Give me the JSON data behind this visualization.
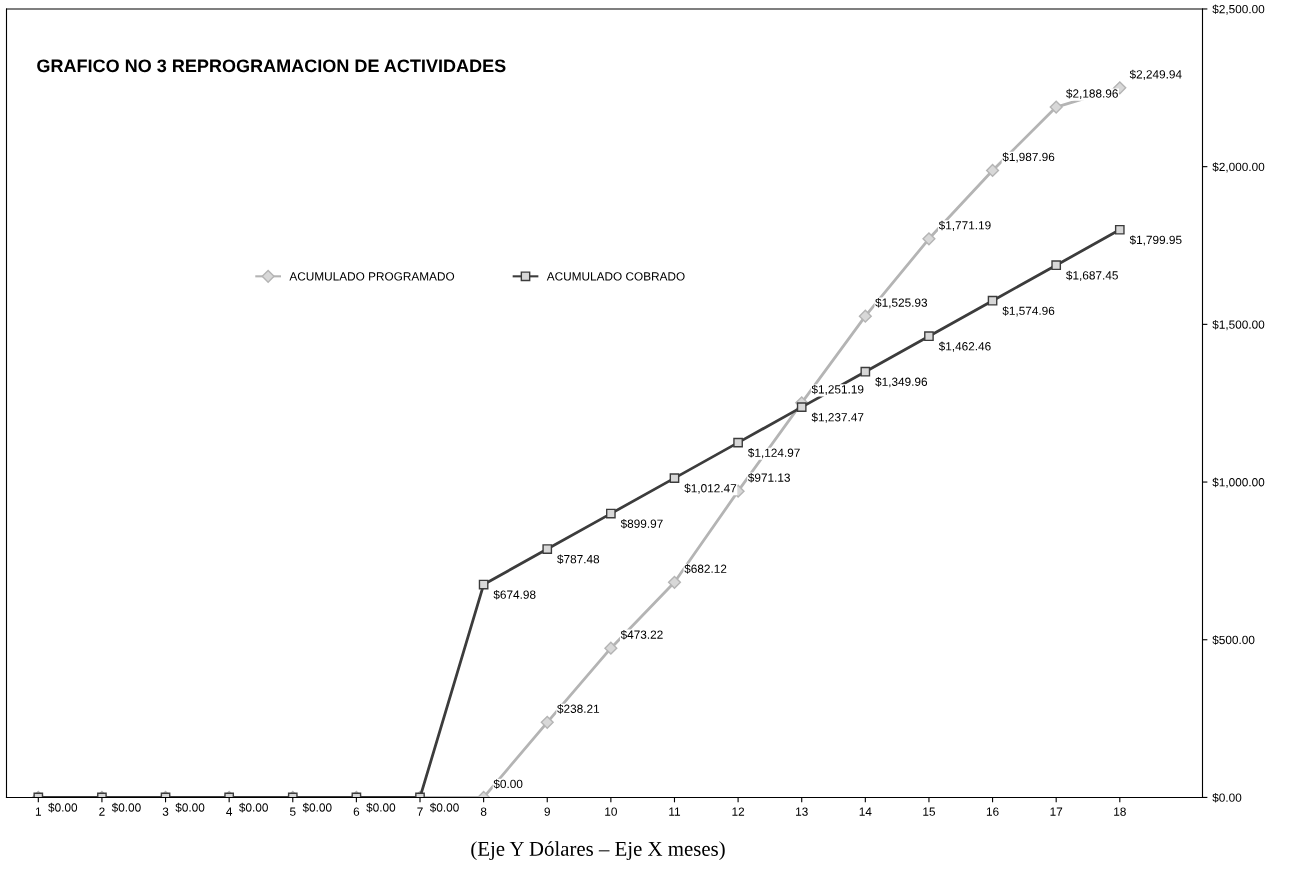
{
  "chart_data": {
    "type": "line",
    "title": "GRAFICO NO 3 REPROGRAMACION DE ACTIVIDADES",
    "categories": [
      "1",
      "2",
      "3",
      "4",
      "5",
      "6",
      "7",
      "8",
      "9",
      "10",
      "11",
      "12",
      "13",
      "14",
      "15",
      "16",
      "17",
      "18"
    ],
    "series": [
      {
        "name": "ACUMULADO PROGRAMADO",
        "color": "#b4b4b4",
        "marker": "diamond",
        "values": [
          0,
          0,
          0,
          0,
          0,
          0,
          0,
          0,
          238.21,
          473.22,
          682.12,
          971.13,
          1251.19,
          1525.93,
          1771.19,
          1987.96,
          2188.96,
          2249.94
        ],
        "value_labels": [
          null,
          null,
          null,
          null,
          null,
          null,
          null,
          "$0.00",
          "$238.21",
          "$473.22",
          "$682.12",
          "$971.13",
          "$1,251.19",
          "$1,525.93",
          "$1,771.19",
          "$1,987.96",
          "$2,188.96",
          "$2,249.94"
        ]
      },
      {
        "name": "ACUMULADO COBRADO",
        "color": "#3c3c3c",
        "marker": "square",
        "values": [
          0,
          0,
          0,
          0,
          0,
          0,
          0,
          674.98,
          787.48,
          899.97,
          1012.47,
          1124.97,
          1237.47,
          1349.96,
          1462.46,
          1574.96,
          1687.45,
          1799.95
        ],
        "value_labels": [
          "$0.00",
          "$0.00",
          "$0.00",
          "$0.00",
          "$0.00",
          "$0.00",
          "$0.00",
          "$674.98",
          "$787.48",
          "$899.97",
          "$1,012.47",
          "$1,124.97",
          "$1,237.47",
          "$1,349.96",
          "$1,462.46",
          "$1,574.96",
          "$1,687.45",
          "$1,799.95"
        ]
      }
    ],
    "ylim": [
      0,
      2500
    ],
    "yticks": [
      {
        "value": 0,
        "label": "$0.00"
      },
      {
        "value": 500,
        "label": "$500.00"
      },
      {
        "value": 1000,
        "label": "$1,000.00"
      },
      {
        "value": 1500,
        "label": "$1,500.00"
      },
      {
        "value": 2000,
        "label": "$2,000.00"
      },
      {
        "value": 2500,
        "label": "$2,500.00"
      }
    ],
    "legend": "top left",
    "grid": false,
    "annotations": [
      "(Eje Y Dólares – Eje X meses)"
    ]
  }
}
